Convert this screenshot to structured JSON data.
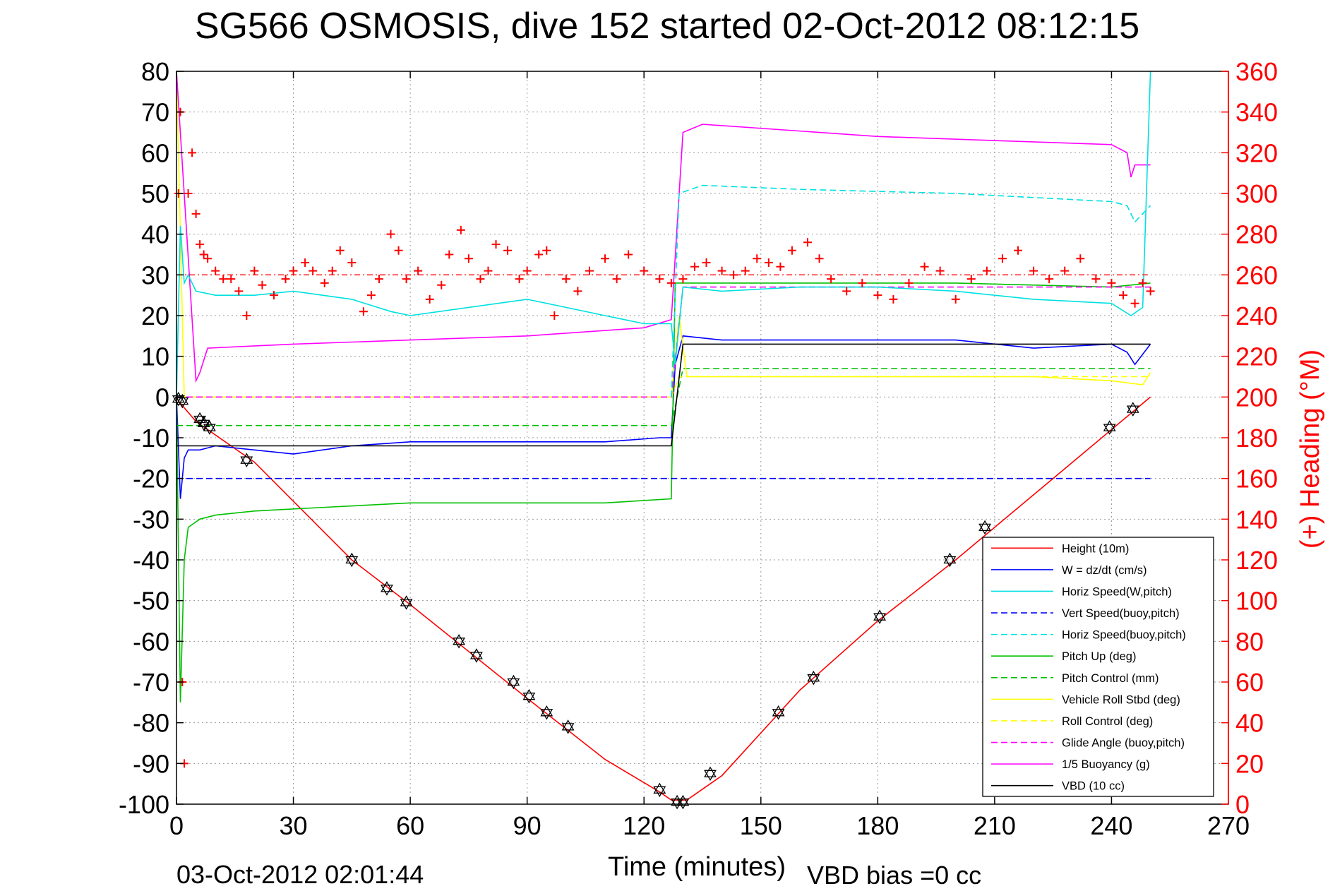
{
  "chart_data": {
    "type": "line",
    "title": "SG566 OSMOSIS, dive 152 started 02-Oct-2012 08:12:15",
    "xlabel": "Time (minutes)",
    "ylabel_right": "(+) Heading (°M)",
    "footer_left": "03-Oct-2012 02:01:44",
    "footer_right": "VBD bias =0 cc",
    "xlim": [
      0,
      270
    ],
    "ylim": [
      -100,
      80
    ],
    "ylim_right": [
      0,
      360
    ],
    "xticks": [
      0,
      30,
      60,
      90,
      120,
      150,
      180,
      210,
      240,
      270
    ],
    "yticks": [
      -100,
      -90,
      -80,
      -70,
      -60,
      -50,
      -40,
      -30,
      -20,
      -10,
      0,
      10,
      20,
      30,
      40,
      50,
      60,
      70,
      80
    ],
    "yticks_right": [
      0,
      20,
      40,
      60,
      80,
      100,
      120,
      140,
      160,
      180,
      200,
      220,
      240,
      260,
      280,
      300,
      320,
      340,
      360
    ],
    "grid": true,
    "legend_position": "bottom-right",
    "series": [
      {
        "name": "Height (10m)",
        "color": "#ff0000",
        "style": "solid",
        "x": [
          0,
          0.5,
          5,
          20,
          45,
          60,
          90,
          110,
          124,
          127,
          131,
          140,
          160,
          180,
          200,
          210,
          230,
          245,
          250
        ],
        "y": [
          0,
          -1,
          -6,
          -16,
          -40,
          -51,
          -74,
          -89,
          -97,
          -99,
          -99,
          -93,
          -72,
          -55,
          -40,
          -32,
          -16,
          -4,
          0
        ]
      },
      {
        "name": "W = dz/dt (cm/s)",
        "color": "#0000ff",
        "style": "solid",
        "x": [
          0,
          1,
          2,
          3,
          6,
          10,
          20,
          30,
          45,
          60,
          90,
          110,
          124,
          127,
          128,
          130,
          140,
          160,
          180,
          200,
          220,
          240,
          244,
          246,
          250
        ],
        "y": [
          0,
          -25,
          -15,
          -13,
          -13,
          -12,
          -13,
          -14,
          -12,
          -11,
          -11,
          -11,
          -10,
          -10,
          8,
          15,
          14,
          14,
          14,
          14,
          12,
          13,
          11,
          8,
          13
        ]
      },
      {
        "name": "Horiz Speed(W,pitch)",
        "color": "#00e0e0",
        "style": "solid",
        "x": [
          0,
          1,
          2,
          3,
          5,
          10,
          20,
          30,
          45,
          55,
          60,
          90,
          110,
          120,
          127,
          128,
          130,
          140,
          160,
          180,
          200,
          220,
          240,
          245,
          248,
          250
        ],
        "y": [
          0,
          42,
          28,
          30,
          26,
          25,
          25,
          26,
          24,
          21,
          20,
          24,
          20,
          18,
          18,
          8,
          27,
          26,
          27,
          27,
          26,
          24,
          23,
          20,
          22,
          80
        ]
      },
      {
        "name": "Vert Speed(buoy,pitch)",
        "color": "#0000ff",
        "style": "dashed",
        "x": [
          0,
          128,
          250
        ],
        "y": [
          -20,
          -20,
          -20
        ]
      },
      {
        "name": "Horiz Speed(buoy,pitch)",
        "color": "#00e0e0",
        "style": "dashed",
        "x": [
          127,
          129,
          135,
          160,
          200,
          240,
          244,
          246,
          250
        ],
        "y": [
          0,
          50,
          52,
          51,
          50,
          48,
          47,
          43,
          47
        ]
      },
      {
        "name": "Pitch Up (deg)",
        "color": "#00c000",
        "style": "solid",
        "x": [
          0,
          1,
          2,
          3,
          6,
          10,
          20,
          40,
          60,
          90,
          110,
          127,
          128,
          130,
          160,
          200,
          240,
          250
        ],
        "y": [
          0,
          -75,
          -40,
          -32,
          -30,
          -29,
          -28,
          -27,
          -26,
          -26,
          -26,
          -25,
          28,
          28,
          28,
          28,
          27,
          28
        ]
      },
      {
        "name": "Pitch Control (mm)",
        "color": "#00c000",
        "style": "dashed",
        "x": [
          0,
          5,
          127,
          130,
          250
        ],
        "y": [
          -7,
          -7,
          -7,
          7,
          7
        ]
      },
      {
        "name": "Vehicle Roll Stbd (deg)",
        "color": "#ffff00",
        "style": "solid",
        "x": [
          0,
          2,
          4,
          5,
          6,
          60,
          120,
          127,
          129,
          131,
          180,
          200,
          220,
          240,
          248,
          250
        ],
        "y": [
          80,
          0,
          0,
          0,
          0,
          0,
          0,
          0,
          20,
          5,
          5,
          5,
          5,
          4,
          3,
          6
        ]
      },
      {
        "name": "Roll Control (deg)",
        "color": "#ffff00",
        "style": "dashed",
        "x": [
          0,
          127,
          129,
          250
        ],
        "y": [
          0,
          0,
          5,
          5
        ]
      },
      {
        "name": "Glide Angle (buoy,pitch)",
        "color": "#ff00ff",
        "style": "dashed",
        "x": [
          0,
          127,
          130,
          200,
          250
        ],
        "y": [
          0,
          0,
          27,
          27,
          27
        ]
      },
      {
        "name": "1/5 Buoyancy (g)",
        "color": "#ff00ff",
        "style": "solid",
        "x": [
          0,
          5,
          6,
          8,
          30,
          60,
          90,
          120,
          127,
          130,
          135,
          180,
          240,
          244,
          245,
          246,
          248,
          250
        ],
        "y": [
          80,
          4,
          6,
          12,
          13,
          14,
          15,
          17,
          19,
          65,
          67,
          64,
          62,
          60,
          54,
          57,
          57,
          57
        ]
      },
      {
        "name": "VBD (10 cc)",
        "color": "#000000",
        "style": "solid",
        "x": [
          0,
          127,
          130,
          250
        ],
        "y": [
          -12,
          -12,
          13,
          13
        ]
      }
    ],
    "heading": {
      "color": "#ff0000",
      "marker": "+",
      "axis": "right",
      "target": 260,
      "x": [
        0.5,
        1,
        1.5,
        2,
        3,
        4,
        5,
        6,
        7,
        8,
        10,
        12,
        14,
        16,
        18,
        20,
        22,
        25,
        28,
        30,
        33,
        35,
        38,
        40,
        42,
        45,
        48,
        50,
        52,
        55,
        57,
        59,
        62,
        65,
        68,
        70,
        73,
        75,
        78,
        80,
        82,
        85,
        88,
        90,
        93,
        95,
        97,
        100,
        103,
        106,
        110,
        113,
        116,
        120,
        124,
        127,
        130,
        133,
        136,
        140,
        143,
        146,
        149,
        152,
        155,
        158,
        162,
        165,
        168,
        172,
        176,
        180,
        184,
        188,
        192,
        196,
        200,
        204,
        208,
        212,
        216,
        220,
        224,
        228,
        232,
        236,
        240,
        243,
        246,
        248,
        250
      ],
      "y": [
        300,
        340,
        60,
        20,
        300,
        320,
        290,
        275,
        270,
        268,
        262,
        258,
        258,
        252,
        240,
        262,
        255,
        250,
        258,
        262,
        266,
        262,
        256,
        262,
        272,
        266,
        242,
        250,
        258,
        280,
        272,
        258,
        262,
        248,
        255,
        270,
        282,
        268,
        258,
        262,
        275,
        272,
        258,
        262,
        270,
        272,
        240,
        258,
        252,
        262,
        268,
        258,
        270,
        262,
        258,
        256,
        258,
        264,
        266,
        262,
        260,
        262,
        268,
        266,
        264,
        272,
        276,
        268,
        258,
        252,
        256,
        250,
        248,
        256,
        264,
        262,
        248,
        258,
        262,
        268,
        272,
        262,
        258,
        262,
        268,
        258,
        256,
        250,
        246,
        256,
        252
      ]
    },
    "waypoints": {
      "marker": "hexagram",
      "x": [
        0.5,
        1.5,
        6,
        7,
        8.5,
        18,
        45,
        54,
        59,
        72.5,
        77,
        86.5,
        90.5,
        95,
        100.5,
        124,
        128.5,
        130,
        137,
        154.5,
        163.5,
        180.5,
        198.5,
        207.5,
        239.5,
        245.5
      ],
      "y": [
        -0.5,
        -1,
        -5.5,
        -6.5,
        -7.5,
        -15.5,
        -40,
        -47,
        -50.5,
        -60,
        -63.5,
        -70,
        -73.5,
        -77.5,
        -81,
        -96.5,
        -99.5,
        -99.5,
        -92.5,
        -77.5,
        -69,
        -54,
        -40,
        -32,
        -7.5,
        -3
      ]
    },
    "legend": [
      "Height (10m)",
      "W = dz/dt (cm/s)",
      "Horiz Speed(W,pitch)",
      "Vert Speed(buoy,pitch)",
      "Horiz Speed(buoy,pitch)",
      "Pitch Up (deg)",
      "Pitch Control (mm)",
      "Vehicle Roll Stbd (deg)",
      "Roll Control (deg)",
      "Glide Angle (buoy,pitch)",
      "1/5 Buoyancy (g)",
      "VBD (10 cc)"
    ]
  }
}
